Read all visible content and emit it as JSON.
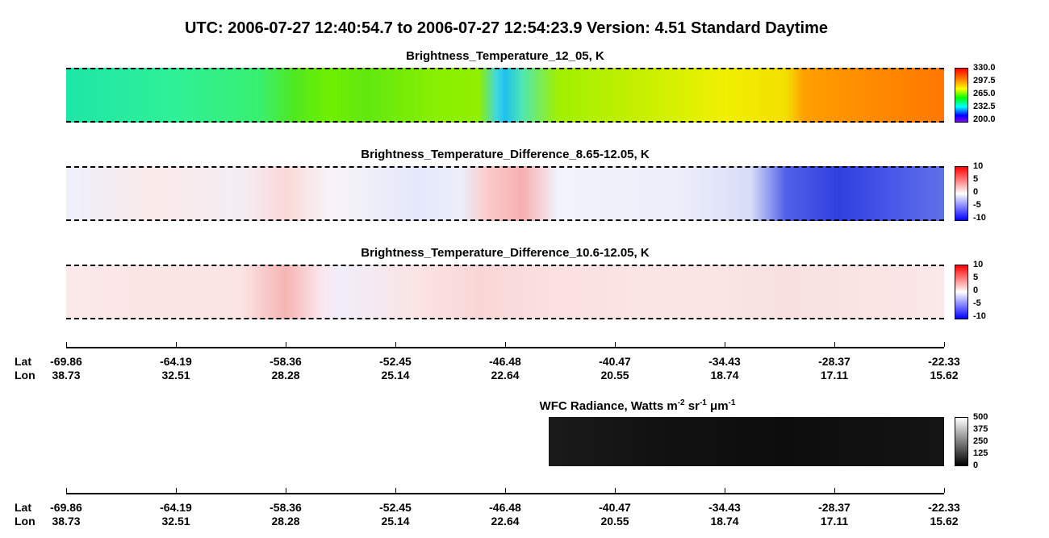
{
  "title": "UTC:  2006-07-27   12:40:54.7  to  2006-07-27   12:54:23.9    Version: 4.51  Standard Daytime",
  "panels": [
    {
      "title": "Brightness_Temperature_12_05, K",
      "colorbar": [
        "330.0",
        "297.5",
        "265.0",
        "232.5",
        "200.0"
      ]
    },
    {
      "title": "Brightness_Temperature_Difference_8.65-12.05, K",
      "colorbar": [
        "10",
        "5",
        "0",
        "-5",
        "-10"
      ]
    },
    {
      "title": "Brightness_Temperature_Difference_10.6-12.05, K",
      "colorbar": [
        "10",
        "5",
        "0",
        "-5",
        "-10"
      ]
    }
  ],
  "row_labels": [
    "Lat",
    "Lon"
  ],
  "axes": [
    {
      "lat": [
        "-69.86",
        "-64.19",
        "-58.36",
        "-52.45",
        "-46.48",
        "-40.47",
        "-34.43",
        "-28.37",
        "-22.33"
      ],
      "lon": [
        "38.73",
        "32.51",
        "28.28",
        "25.14",
        "22.64",
        "20.55",
        "18.74",
        "17.11",
        "15.62"
      ]
    },
    {
      "lat": [
        "-69.86",
        "-64.19",
        "-58.36",
        "-52.45",
        "-46.48",
        "-40.47",
        "-34.43",
        "-28.37",
        "-22.33"
      ],
      "lon": [
        "38.73",
        "32.51",
        "28.28",
        "25.14",
        "22.64",
        "20.55",
        "18.74",
        "17.11",
        "15.62"
      ]
    }
  ],
  "wfc": {
    "title": [
      "WFC Radiance, Watts m",
      "-2",
      " sr",
      "-1",
      " μm",
      "-1"
    ],
    "colorbar": [
      "500",
      "375",
      "250",
      "125",
      "0"
    ]
  }
}
